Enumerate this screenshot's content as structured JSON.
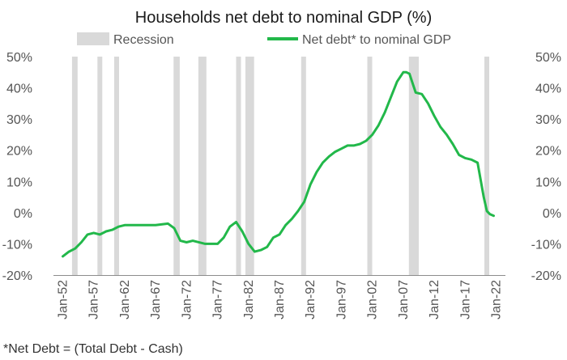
{
  "chart_data": {
    "type": "line",
    "title": "Households net debt to nominal GDP (%)",
    "footnote": "*Net Debt = (Total Debt - Cash)",
    "legend": [
      {
        "key": "recession",
        "label": "Recession",
        "color": "#d9d9d9"
      },
      {
        "key": "series",
        "label": "Net debt* to nominal GDP",
        "color": "#22b84a"
      }
    ],
    "y_ticks": [
      "50%",
      "40%",
      "30%",
      "20%",
      "10%",
      "0%",
      "-10%",
      "-20%"
    ],
    "ylim": [
      -20,
      50
    ],
    "x_ticks": [
      "Jan-52",
      "Jan-57",
      "Jan-62",
      "Jan-67",
      "Jan-72",
      "Jan-77",
      "Jan-82",
      "Jan-87",
      "Jan-92",
      "Jan-97",
      "Jan-02",
      "Jan-07",
      "Jan-12",
      "Jan-17",
      "Jan-22"
    ],
    "xlim": [
      1952,
      2022
    ],
    "recessions": [
      [
        1953.5,
        1954.4
      ],
      [
        1957.6,
        1958.3
      ],
      [
        1960.3,
        1961.1
      ],
      [
        1969.9,
        1970.9
      ],
      [
        1973.9,
        1975.2
      ],
      [
        1980.0,
        1980.6
      ],
      [
        1981.5,
        1982.9
      ],
      [
        1990.5,
        1991.2
      ],
      [
        2001.2,
        2001.9
      ],
      [
        2007.9,
        2009.5
      ],
      [
        2020.1,
        2020.5
      ]
    ],
    "series": [
      {
        "name": "Net debt* to nominal GDP",
        "x": [
          1952,
          1953,
          1954,
          1955,
          1956,
          1957,
          1958,
          1959,
          1960,
          1961,
          1962,
          1963,
          1965,
          1967,
          1969,
          1970,
          1971,
          1972,
          1973,
          1975,
          1977,
          1978,
          1979,
          1980,
          1981,
          1982,
          1983,
          1984,
          1985,
          1986,
          1987,
          1988,
          1989,
          1990,
          1991,
          1992,
          1993,
          1994,
          1995,
          1996,
          1997,
          1998,
          1999,
          2000,
          2001,
          2002,
          2003,
          2004,
          2005,
          2006,
          2007,
          2007.5,
          2008,
          2009,
          2010,
          2011,
          2012,
          2013,
          2014,
          2015,
          2016,
          2017,
          2018,
          2019,
          2020,
          2020.5,
          2021,
          2021.6
        ],
        "y": [
          -14,
          -12.5,
          -11.5,
          -9.5,
          -7,
          -6.5,
          -7,
          -6,
          -5.5,
          -4.5,
          -4,
          -4,
          -4,
          -4,
          -3.5,
          -5,
          -9,
          -9.5,
          -9,
          -10,
          -10,
          -8,
          -4.5,
          -3,
          -6,
          -10,
          -12.5,
          -12,
          -11,
          -8,
          -7,
          -4,
          -2,
          0.5,
          3.5,
          9,
          13,
          16,
          18,
          19.5,
          20.5,
          21.5,
          21.5,
          22,
          23,
          25,
          28,
          32,
          37,
          42,
          45,
          45,
          44.5,
          38.5,
          38,
          35,
          31,
          27.5,
          25,
          22,
          18.5,
          17.5,
          17,
          16,
          5,
          0.5,
          -0.5,
          -1
        ]
      }
    ]
  }
}
